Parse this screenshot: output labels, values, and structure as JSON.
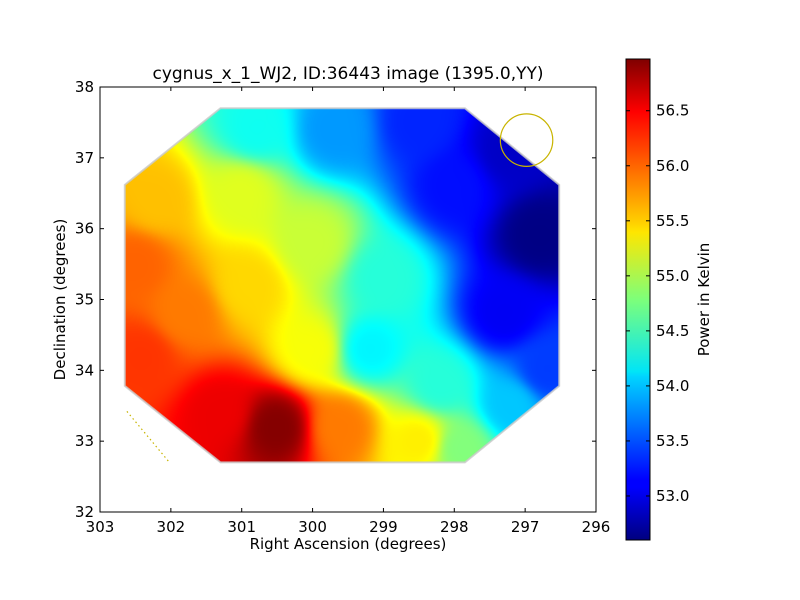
{
  "chart_data": {
    "type": "heatmap",
    "title": "cygnus_x_1_WJ2, ID:36443 image (1395.0,YY)",
    "xlabel": "Right Ascension (degrees)",
    "ylabel": "Declination (degrees)",
    "xlim": [
      303,
      296
    ],
    "ylim": [
      32,
      38
    ],
    "xticks": [
      "303",
      "302",
      "301",
      "300",
      "299",
      "298",
      "297",
      "296"
    ],
    "yticks": [
      "32",
      "33",
      "34",
      "35",
      "36",
      "37",
      "38"
    ],
    "colorbar": {
      "label": "Power in Kelvin",
      "range": [
        52.6,
        56.97
      ],
      "ticks": [
        "53.0",
        "53.5",
        "54.0",
        "54.5",
        "55.0",
        "55.5",
        "56.0",
        "56.5"
      ],
      "colormap": "jet"
    },
    "footprint_octagon": [
      [
        301.3,
        37.7
      ],
      [
        297.85,
        37.7
      ],
      [
        296.52,
        36.62
      ],
      [
        296.52,
        33.78
      ],
      [
        297.85,
        32.7
      ],
      [
        301.3,
        32.7
      ],
      [
        302.65,
        33.78
      ],
      [
        302.65,
        36.62
      ]
    ],
    "power_samples": [
      {
        "ra": 300.5,
        "dec": 33.2,
        "value": 56.95
      },
      {
        "ra": 301.3,
        "dec": 33.4,
        "value": 56.5
      },
      {
        "ra": 302.5,
        "dec": 35.5,
        "value": 56.0
      },
      {
        "ra": 302.4,
        "dec": 34.2,
        "value": 56.2
      },
      {
        "ra": 301.8,
        "dec": 34.8,
        "value": 55.9
      },
      {
        "ra": 302.2,
        "dec": 36.4,
        "value": 55.6
      },
      {
        "ra": 301.0,
        "dec": 36.5,
        "value": 55.2
      },
      {
        "ra": 300.9,
        "dec": 35.2,
        "value": 55.5
      },
      {
        "ra": 300.0,
        "dec": 34.3,
        "value": 55.3
      },
      {
        "ra": 299.6,
        "dec": 33.2,
        "value": 55.9
      },
      {
        "ra": 298.5,
        "dec": 33.0,
        "value": 55.4
      },
      {
        "ra": 300.8,
        "dec": 37.4,
        "value": 54.3
      },
      {
        "ra": 299.7,
        "dec": 37.4,
        "value": 53.8
      },
      {
        "ra": 300.0,
        "dec": 35.8,
        "value": 55.1
      },
      {
        "ra": 299.0,
        "dec": 35.3,
        "value": 54.4
      },
      {
        "ra": 299.2,
        "dec": 34.3,
        "value": 54.2
      },
      {
        "ra": 298.2,
        "dec": 33.8,
        "value": 54.4
      },
      {
        "ra": 297.9,
        "dec": 32.9,
        "value": 54.8
      },
      {
        "ra": 298.0,
        "dec": 36.6,
        "value": 53.2
      },
      {
        "ra": 298.5,
        "dec": 37.5,
        "value": 53.3
      },
      {
        "ra": 297.2,
        "dec": 37.1,
        "value": 52.9
      },
      {
        "ra": 296.8,
        "dec": 35.9,
        "value": 52.62
      },
      {
        "ra": 297.3,
        "dec": 34.8,
        "value": 53.1
      },
      {
        "ra": 296.7,
        "dec": 34.0,
        "value": 53.4
      },
      {
        "ra": 297.2,
        "dec": 33.5,
        "value": 54.0
      }
    ],
    "beam_circle": {
      "ra": 296.98,
      "dec": 37.25,
      "radius_deg": 0.37
    },
    "dotted_line": [
      [
        302.62,
        33.42
      ],
      [
        302.02,
        32.7
      ]
    ],
    "annotation_color": "#c8b400"
  }
}
